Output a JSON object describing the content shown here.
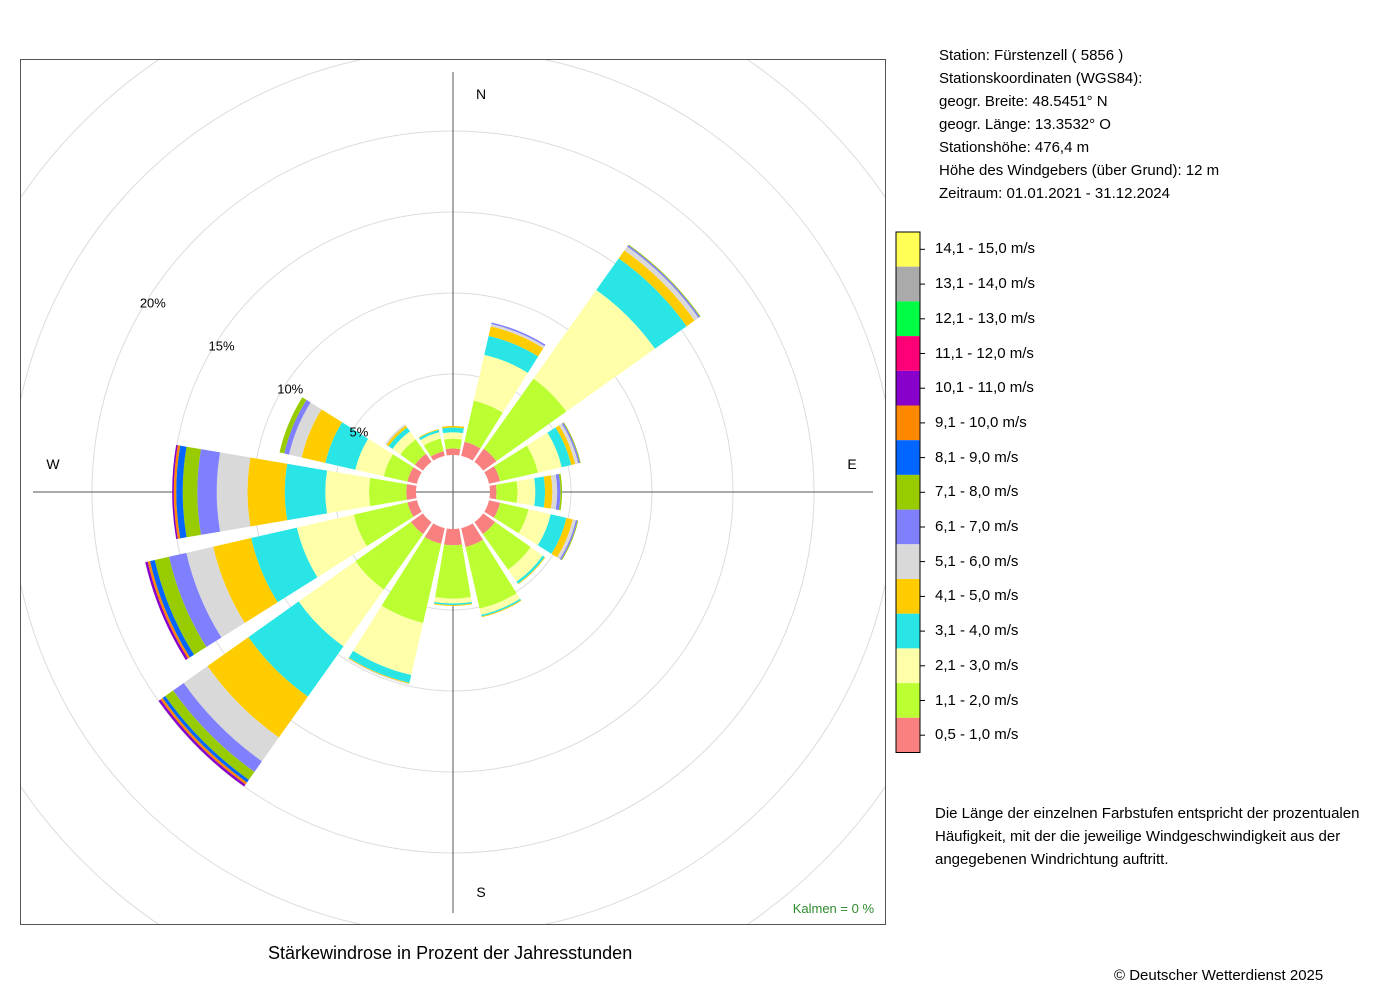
{
  "station": {
    "lines": [
      "Station:  Fürstenzell  ( 5856 )",
      "Stationskoordinaten (WGS84):",
      "geogr. Breite: 48.5451° N",
      "geogr. Länge: 13.3532° O",
      "Stationshöhe: 476,4 m",
      "Höhe des Windgebers (über Grund): 12 m",
      "Zeitraum: 01.01.2021 - 31.12.2024"
    ]
  },
  "note": {
    "lines": [
      "Die Länge der einzelnen Farbstufen entspricht der prozentualen",
      "Häufigkeit, mit der die jeweilige Windgeschwindigkeit aus der",
      "angegebenen Windrichtung auftritt."
    ]
  },
  "caption": "Stärkewindrose in Prozent der Jahresstunden",
  "copyright": "© Deutscher Wetterdienst  2025",
  "chart_data": {
    "type": "wind-rose",
    "title": "Stärkewindrose in Prozent der Jahresstunden",
    "direction_labels": [
      "N",
      "E",
      "S",
      "W"
    ],
    "ring_labels": [
      "5%",
      "10%",
      "15%",
      "20%"
    ],
    "ring_values": [
      5,
      10,
      15,
      20
    ],
    "calm_label": "Kalmen  =  0 %",
    "calm_value": 0,
    "directions_deg": [
      0,
      22.5,
      45,
      67.5,
      90,
      112.5,
      135,
      157.5,
      180,
      202.5,
      225,
      247.5,
      270,
      292.5,
      315,
      337.5
    ],
    "speed_classes": [
      {
        "label": "0,5 - 1,0 m/s",
        "color": "#F88080"
      },
      {
        "label": "1,1 - 2,0 m/s",
        "color": "#BBFF33"
      },
      {
        "label": "2,1 - 3,0 m/s",
        "color": "#FFFFAA"
      },
      {
        "label": "3,1 - 4,0 m/s",
        "color": "#2AE5E5"
      },
      {
        "label": "4,1 - 5,0 m/s",
        "color": "#FFCC00"
      },
      {
        "label": "5,1 - 6,0 m/s",
        "color": "#D9D9D9"
      },
      {
        "label": "6,1 - 7,0 m/s",
        "color": "#8080FF"
      },
      {
        "label": "7,1 - 8,0 m/s",
        "color": "#99CC00"
      },
      {
        "label": "8,1 - 9,0 m/s",
        "color": "#0066FF"
      },
      {
        "label": "9,1 - 10,0 m/s",
        "color": "#FF8800"
      },
      {
        "label": "10,1 - 11,0 m/s",
        "color": "#8800CC"
      },
      {
        "label": "11,1 - 12,0 m/s",
        "color": "#FF0077"
      },
      {
        "label": "12,1 - 13,0 m/s",
        "color": "#00FF44"
      },
      {
        "label": "13,1 - 14,0 m/s",
        "color": "#AAAAAA"
      },
      {
        "label": "14,1 - 15,0 m/s",
        "color": "#FFFF55"
      }
    ],
    "frequencies_percent": [
      [
        0.4,
        0.6,
        0.4,
        0.3,
        0.1,
        0,
        0,
        0,
        0,
        0,
        0,
        0,
        0,
        0,
        0
      ],
      [
        0.9,
        2.6,
        2.9,
        1.2,
        0.6,
        0.15,
        0.1,
        0,
        0,
        0,
        0,
        0,
        0,
        0,
        0
      ],
      [
        1.0,
        5.3,
        6.7,
        2.4,
        0.6,
        0.3,
        0.1,
        0.05,
        0,
        0,
        0,
        0,
        0,
        0,
        0
      ],
      [
        0.7,
        2.4,
        1.5,
        0.6,
        0.25,
        0.2,
        0.1,
        0.05,
        0,
        0,
        0,
        0,
        0,
        0,
        0
      ],
      [
        0.4,
        1.3,
        1.1,
        0.6,
        0.45,
        0.3,
        0.2,
        0.1,
        0,
        0,
        0,
        0,
        0,
        0,
        0
      ],
      [
        0.7,
        1.8,
        1.4,
        1.0,
        0.4,
        0.2,
        0.1,
        0.05,
        0,
        0,
        0,
        0,
        0,
        0,
        0
      ],
      [
        0.9,
        2.7,
        0.9,
        0.15,
        0.05,
        0,
        0,
        0,
        0,
        0,
        0,
        0,
        0,
        0,
        0
      ],
      [
        1.2,
        3.9,
        0.4,
        0.1,
        0.05,
        0,
        0,
        0,
        0,
        0,
        0,
        0,
        0,
        0,
        0
      ],
      [
        1.0,
        3.3,
        0.3,
        0.1,
        0.05,
        0,
        0,
        0,
        0,
        0,
        0,
        0,
        0,
        0,
        0
      ],
      [
        1.0,
        5.0,
        3.3,
        0.5,
        0.05,
        0.05,
        0,
        0,
        0,
        0,
        0,
        0,
        0,
        0,
        0
      ],
      [
        0.9,
        4.2,
        4.3,
        3.8,
        3.1,
        1.8,
        0.8,
        0.6,
        0.2,
        0.15,
        0.15,
        0,
        0,
        0,
        0
      ],
      [
        0.6,
        3.4,
        3.6,
        2.9,
        2.4,
        1.7,
        1.1,
        0.9,
        0.3,
        0.15,
        0.15,
        0,
        0,
        0,
        0
      ],
      [
        0.6,
        2.3,
        2.7,
        2.5,
        2.3,
        1.9,
        1.2,
        0.9,
        0.4,
        0.15,
        0.1,
        0,
        0,
        0,
        0
      ],
      [
        0.6,
        1.5,
        1.8,
        1.9,
        1.5,
        0.8,
        0.3,
        0.3,
        0,
        0,
        0,
        0,
        0,
        0,
        0
      ],
      [
        0.6,
        1.1,
        0.6,
        0.3,
        0.15,
        0.1,
        0,
        0,
        0,
        0,
        0,
        0,
        0,
        0,
        0
      ],
      [
        0.3,
        0.8,
        0.4,
        0.15,
        0.05,
        0,
        0,
        0,
        0,
        0,
        0,
        0,
        0,
        0,
        0
      ]
    ],
    "grid": true,
    "legend_position": "right"
  }
}
